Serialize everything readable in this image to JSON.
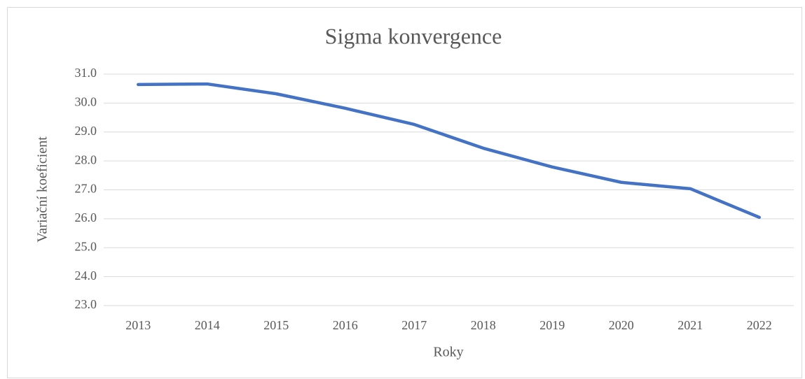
{
  "chart_data": {
    "type": "line",
    "title": "Sigma konvergence",
    "x_label": "Roky",
    "y_label": "Variační koeficient",
    "categories": [
      "2013",
      "2014",
      "2015",
      "2016",
      "2017",
      "2018",
      "2019",
      "2020",
      "2021",
      "2022"
    ],
    "series": [
      {
        "name": "Variační koeficient",
        "color": "#4472c4",
        "values": [
          30.64,
          30.66,
          30.32,
          29.82,
          29.26,
          28.44,
          27.79,
          27.26,
          27.04,
          26.05
        ]
      }
    ],
    "ylim": [
      23,
      31
    ],
    "yticks": [
      {
        "value": 23,
        "label": "23.0"
      },
      {
        "value": 24,
        "label": "24.0"
      },
      {
        "value": 25,
        "label": "25.0"
      },
      {
        "value": 26,
        "label": "26.0"
      },
      {
        "value": 27,
        "label": "27.0"
      },
      {
        "value": 28,
        "label": "28.0"
      },
      {
        "value": 29,
        "label": "29.0"
      },
      {
        "value": 30,
        "label": "30.0"
      },
      {
        "value": 31,
        "label": "31.0"
      }
    ],
    "grid": true
  }
}
